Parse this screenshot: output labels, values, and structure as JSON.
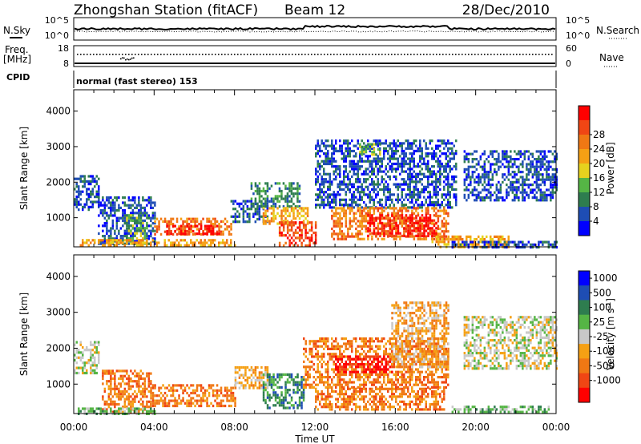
{
  "header": {
    "station": "Zhongshan Station (fitACF)",
    "beam": "Beam 12",
    "date": "28/Dec/2010"
  },
  "noise_panel": {
    "left_label": "N.Sky",
    "right_label": "N.Search",
    "left_ticks": [
      "10^5",
      "10^0"
    ],
    "right_ticks": [
      "10^5",
      "10^0"
    ]
  },
  "freq_panel": {
    "left_label_1": "Freq.",
    "left_label_2": "[MHz]",
    "left_ticks": [
      "18",
      "8"
    ],
    "right_label": "Nave",
    "right_ticks": [
      "60",
      "0"
    ]
  },
  "cpid_panel": {
    "label": "CPID",
    "mode": "normal (fast stereo) 153"
  },
  "colors": {
    "power": [
      "#0000ff",
      "#1e4db4",
      "#2e7d4f",
      "#55b545",
      "#e6d21e",
      "#f5a014",
      "#f07814",
      "#f04614",
      "#ff0000"
    ],
    "velocity": [
      "#ff0000",
      "#f04614",
      "#f07814",
      "#f5a014",
      "#c8c8c8",
      "#55b545",
      "#2e7d4f",
      "#1e4db4",
      "#0000ff"
    ]
  },
  "chart_data": [
    {
      "type": "heatmap",
      "name_ref": "power",
      "ylabel": "Slant Range [km]",
      "ylim": [
        180,
        4600
      ],
      "xlim": [
        0,
        24
      ],
      "yticks": [
        1000,
        2000,
        3000,
        4000
      ],
      "colorbar_label": "Power [dB]",
      "colorbar_ticks": [
        "4",
        "8",
        "12",
        "16",
        "20",
        "24",
        "28"
      ],
      "regions": [
        {
          "x0": 0.0,
          "x1": 1.2,
          "y0": 1200,
          "y1": 2200,
          "level": 1
        },
        {
          "x0": 1.2,
          "x1": 4.0,
          "y0": 300,
          "y1": 1600,
          "level": 1
        },
        {
          "x0": 2.6,
          "x1": 3.6,
          "y0": 300,
          "y1": 1100,
          "level": 3
        },
        {
          "x0": 4.0,
          "x1": 7.8,
          "y0": 500,
          "y1": 1000,
          "level": 6
        },
        {
          "x0": 4.6,
          "x1": 7.2,
          "y0": 550,
          "y1": 800,
          "level": 8
        },
        {
          "x0": 0.3,
          "x1": 8.0,
          "y0": 200,
          "y1": 400,
          "level": 5
        },
        {
          "x0": 7.8,
          "x1": 9.6,
          "y0": 900,
          "y1": 1500,
          "level": 1
        },
        {
          "x0": 8.8,
          "x1": 11.2,
          "y0": 1300,
          "y1": 2000,
          "level": 2
        },
        {
          "x0": 9.4,
          "x1": 11.6,
          "y0": 800,
          "y1": 1300,
          "level": 5
        },
        {
          "x0": 10.2,
          "x1": 12.0,
          "y0": 250,
          "y1": 900,
          "level": 7
        },
        {
          "x0": 12.0,
          "x1": 19.0,
          "y0": 1300,
          "y1": 3200,
          "level": 1
        },
        {
          "x0": 12.8,
          "x1": 18.6,
          "y0": 400,
          "y1": 1300,
          "level": 6
        },
        {
          "x0": 14.6,
          "x1": 18.0,
          "y0": 500,
          "y1": 1100,
          "level": 8
        },
        {
          "x0": 14.2,
          "x1": 15.2,
          "y0": 2800,
          "y1": 3100,
          "level": 3
        },
        {
          "x0": 17.8,
          "x1": 21.6,
          "y0": 200,
          "y1": 500,
          "level": 5
        },
        {
          "x0": 18.8,
          "x1": 24.0,
          "y0": 200,
          "y1": 350,
          "level": 1
        },
        {
          "x0": 19.4,
          "x1": 24.0,
          "y0": 1500,
          "y1": 2900,
          "level": 1
        }
      ]
    },
    {
      "type": "heatmap",
      "name_ref": "velocity",
      "ylabel": "Slant Range [km]",
      "ylim": [
        180,
        4600
      ],
      "xlim": [
        0,
        24
      ],
      "yticks": [
        1000,
        2000,
        3000,
        4000
      ],
      "xticks": [
        "00:00",
        "04:00",
        "08:00",
        "12:00",
        "16:00",
        "20:00",
        "00:00"
      ],
      "xlabel": "Time UT",
      "colorbar_label": "Velocity [m s^-1]",
      "colorbar_ticks": [
        "1000",
        "500",
        "100",
        "25",
        "-25",
        "-100",
        "-500",
        "-1000"
      ],
      "regions": [
        {
          "x0": 0.0,
          "x1": 1.2,
          "y0": 1300,
          "y1": 2200,
          "level": 4
        },
        {
          "x0": 1.4,
          "x1": 3.8,
          "y0": 250,
          "y1": 1400,
          "level": 2
        },
        {
          "x0": 3.8,
          "x1": 8.0,
          "y0": 400,
          "y1": 1000,
          "level": 2
        },
        {
          "x0": 0.2,
          "x1": 4.0,
          "y0": 200,
          "y1": 350,
          "level": 5
        },
        {
          "x0": 8.0,
          "x1": 9.6,
          "y0": 900,
          "y1": 1500,
          "level": 3
        },
        {
          "x0": 9.4,
          "x1": 11.4,
          "y0": 300,
          "y1": 1300,
          "level": 6
        },
        {
          "x0": 11.4,
          "x1": 18.6,
          "y0": 900,
          "y1": 2300,
          "level": 2
        },
        {
          "x0": 12.0,
          "x1": 18.4,
          "y0": 300,
          "y1": 900,
          "level": 2
        },
        {
          "x0": 13.0,
          "x1": 15.8,
          "y0": 1300,
          "y1": 1800,
          "level": 0
        },
        {
          "x0": 15.8,
          "x1": 18.6,
          "y0": 1500,
          "y1": 3300,
          "level": 3
        },
        {
          "x0": 18.8,
          "x1": 23.6,
          "y0": 200,
          "y1": 400,
          "level": 5
        },
        {
          "x0": 19.4,
          "x1": 24.0,
          "y0": 1400,
          "y1": 2900,
          "level": 4
        }
      ]
    }
  ]
}
